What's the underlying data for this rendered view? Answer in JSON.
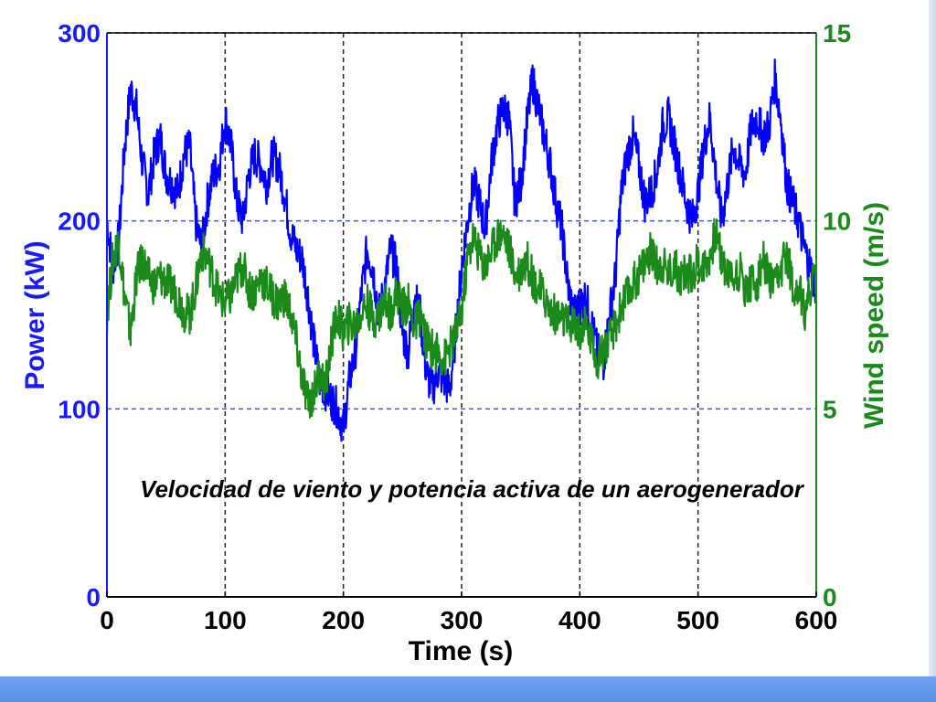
{
  "chart_data": {
    "type": "line",
    "title": "",
    "caption": "Velocidad de viento y potencia activa de un aerogenerador",
    "xlabel": "Time (s)",
    "xlim": [
      0,
      600
    ],
    "x_ticks": [
      "0",
      "100",
      "200",
      "300",
      "400",
      "500",
      "600"
    ],
    "grid": true,
    "axes": {
      "left": {
        "label": "Power (kW)",
        "ylim": [
          0,
          300
        ],
        "ticks": [
          "0",
          "100",
          "200",
          "300"
        ],
        "color": "#1a1aff"
      },
      "right": {
        "label": "Wind speed (m/s)",
        "ylim": [
          0,
          15
        ],
        "ticks": [
          "0",
          "5",
          "10",
          "15"
        ],
        "color": "#1a8a1a"
      }
    },
    "series": [
      {
        "axis": "left",
        "color": "#0000ff",
        "x": [
          0,
          5,
          10,
          15,
          20,
          25,
          30,
          35,
          40,
          45,
          50,
          55,
          60,
          65,
          70,
          75,
          80,
          85,
          90,
          95,
          100,
          105,
          110,
          115,
          120,
          125,
          130,
          135,
          140,
          145,
          150,
          155,
          160,
          165,
          170,
          175,
          180,
          185,
          190,
          195,
          200,
          205,
          210,
          215,
          220,
          225,
          230,
          235,
          240,
          245,
          250,
          255,
          260,
          265,
          270,
          275,
          280,
          285,
          290,
          295,
          300,
          305,
          310,
          315,
          320,
          325,
          330,
          335,
          340,
          345,
          350,
          355,
          360,
          365,
          370,
          375,
          380,
          385,
          390,
          395,
          400,
          405,
          410,
          415,
          420,
          425,
          430,
          435,
          440,
          445,
          450,
          455,
          460,
          465,
          470,
          475,
          480,
          485,
          490,
          495,
          500,
          505,
          510,
          515,
          520,
          525,
          530,
          535,
          540,
          545,
          550,
          555,
          560,
          565,
          570,
          575,
          580,
          585,
          590,
          595,
          600
        ],
        "y": [
          200,
          175,
          190,
          240,
          270,
          260,
          230,
          215,
          235,
          245,
          225,
          220,
          215,
          235,
          240,
          200,
          185,
          210,
          225,
          230,
          255,
          240,
          210,
          200,
          225,
          235,
          230,
          220,
          235,
          230,
          215,
          195,
          185,
          180,
          160,
          135,
          115,
          110,
          105,
          100,
          90,
          115,
          130,
          160,
          185,
          175,
          150,
          165,
          185,
          175,
          140,
          130,
          160,
          150,
          120,
          110,
          120,
          115,
          110,
          140,
          175,
          200,
          220,
          210,
          195,
          230,
          250,
          260,
          255,
          210,
          220,
          250,
          275,
          260,
          245,
          230,
          210,
          195,
          165,
          150,
          155,
          160,
          145,
          130,
          125,
          150,
          170,
          215,
          235,
          245,
          230,
          210,
          215,
          225,
          250,
          255,
          240,
          225,
          210,
          200,
          215,
          240,
          255,
          225,
          200,
          220,
          240,
          230,
          225,
          250,
          255,
          245,
          250,
          275,
          255,
          220,
          210,
          200,
          185,
          175,
          165
        ]
      },
      {
        "axis": "right",
        "color": "#1a8a1a",
        "x": [
          0,
          5,
          10,
          15,
          20,
          25,
          30,
          35,
          40,
          45,
          50,
          55,
          60,
          65,
          70,
          75,
          80,
          85,
          90,
          95,
          100,
          105,
          110,
          115,
          120,
          125,
          130,
          135,
          140,
          145,
          150,
          155,
          160,
          165,
          170,
          175,
          180,
          185,
          190,
          195,
          200,
          205,
          210,
          215,
          220,
          225,
          230,
          235,
          240,
          245,
          250,
          255,
          260,
          265,
          270,
          275,
          280,
          285,
          290,
          295,
          300,
          305,
          310,
          315,
          320,
          325,
          330,
          335,
          340,
          345,
          350,
          355,
          360,
          365,
          370,
          375,
          380,
          385,
          390,
          395,
          400,
          405,
          410,
          415,
          420,
          425,
          430,
          435,
          440,
          445,
          450,
          455,
          460,
          465,
          470,
          475,
          480,
          485,
          490,
          495,
          500,
          505,
          510,
          515,
          520,
          525,
          530,
          535,
          540,
          545,
          550,
          555,
          560,
          565,
          570,
          575,
          580,
          585,
          590,
          595,
          600
        ],
        "y": [
          7.5,
          9,
          9.5,
          8,
          7,
          8.5,
          9,
          8.5,
          8.3,
          8.5,
          8.4,
          8.2,
          8,
          7.6,
          7.5,
          8.2,
          9.2,
          9,
          8.5,
          8,
          7.8,
          8,
          8.5,
          8.8,
          8.2,
          8.1,
          8.5,
          8.3,
          8,
          7.8,
          8,
          7.6,
          6.8,
          5.8,
          5.2,
          5.4,
          6,
          5.6,
          6.8,
          7.5,
          7,
          7.3,
          7.2,
          7.6,
          7.8,
          7.4,
          7.5,
          7.9,
          7.6,
          8.1,
          7.7,
          7.8,
          7.2,
          7.5,
          6.8,
          6.6,
          6.5,
          6.3,
          6.6,
          7,
          7.6,
          9,
          9.6,
          9.1,
          8.8,
          9.2,
          9.6,
          9.7,
          9.3,
          8.6,
          8.7,
          9,
          8.5,
          8.2,
          8,
          7.6,
          7.5,
          7.4,
          7.2,
          7.3,
          7,
          7.2,
          6.8,
          6.3,
          6.6,
          6.8,
          7.2,
          7.7,
          8,
          8.3,
          8.6,
          8.9,
          9.2,
          8.8,
          8.9,
          8.6,
          8.8,
          8.5,
          8.6,
          8.6,
          8.9,
          8.8,
          9.1,
          9.7,
          9,
          8.6,
          8.5,
          8.7,
          8.2,
          8.4,
          8.3,
          9,
          8.4,
          8.2,
          8.6,
          9.2,
          8.3,
          8.2,
          7.6,
          8.2,
          8.6
        ]
      }
    ]
  }
}
